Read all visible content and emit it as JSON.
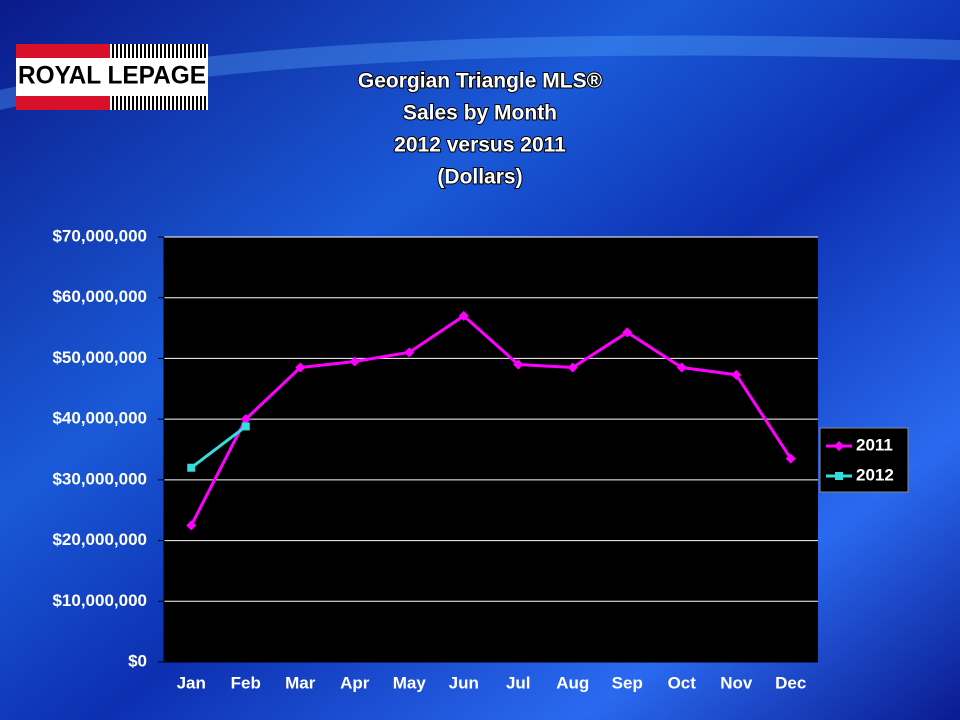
{
  "logo": "ROYAL LEPAGE",
  "chart_data": {
    "type": "line",
    "title": [
      "Georgian Triangle MLS®",
      "Sales by Month",
      "2012 versus 2011",
      "(Dollars)"
    ],
    "categories": [
      "Jan",
      "Feb",
      "Mar",
      "Apr",
      "May",
      "Jun",
      "Jul",
      "Aug",
      "Sep",
      "Oct",
      "Nov",
      "Dec"
    ],
    "series": [
      {
        "name": "2011",
        "color": "#ff00ff",
        "marker": "diamond",
        "values": [
          22500000,
          40000000,
          48500000,
          49500000,
          51000000,
          57000000,
          49000000,
          48500000,
          54300000,
          48500000,
          47300000,
          33500000
        ]
      },
      {
        "name": "2012",
        "color": "#33dddd",
        "marker": "square",
        "values": [
          32000000,
          38800000,
          null,
          null,
          null,
          null,
          null,
          null,
          null,
          null,
          null,
          null
        ]
      }
    ],
    "ylim": [
      0,
      70000000
    ],
    "yticks": [
      {
        "value": 0,
        "label": "$0"
      },
      {
        "value": 10000000,
        "label": "$10,000,000"
      },
      {
        "value": 20000000,
        "label": "$20,000,000"
      },
      {
        "value": 30000000,
        "label": "$30,000,000"
      },
      {
        "value": 40000000,
        "label": "$40,000,000"
      },
      {
        "value": 50000000,
        "label": "$50,000,000"
      },
      {
        "value": 60000000,
        "label": "$60,000,000"
      },
      {
        "value": 70000000,
        "label": "$70,000,000"
      }
    ],
    "grid": true,
    "legend": "right"
  }
}
